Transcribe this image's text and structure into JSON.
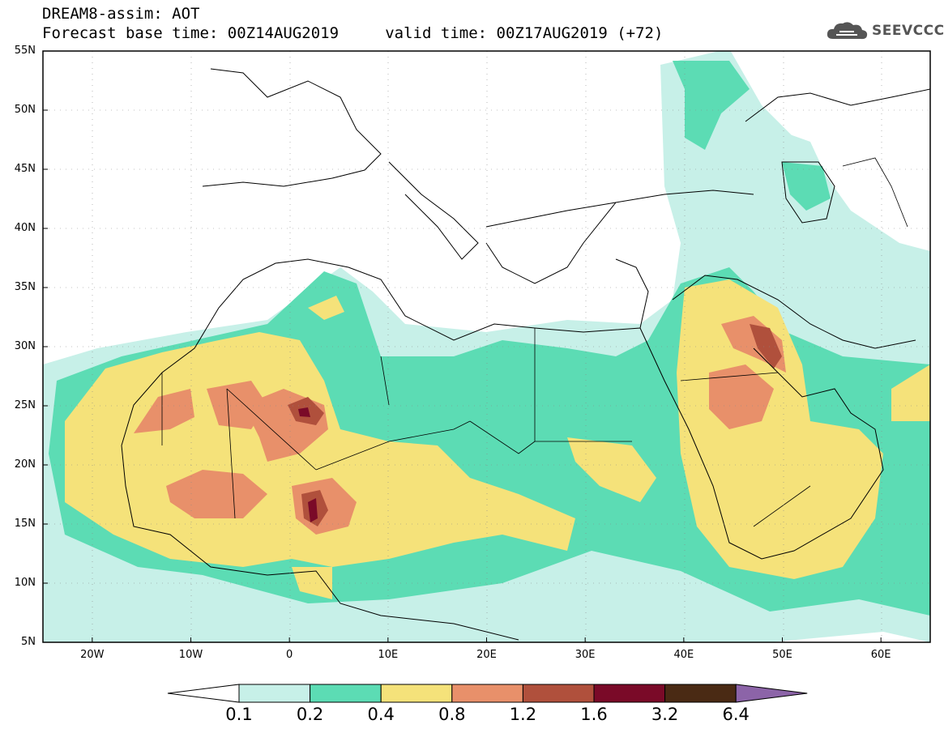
{
  "title": {
    "line1": "DREAM8-assim: AOT",
    "line2": "Forecast base time: 00Z14AUG2019     valid time: 00Z17AUG2019 (+72)"
  },
  "logo": {
    "text": "SEEVCCC",
    "icon": "cloud-icon"
  },
  "axes": {
    "lat_labels": [
      "55N",
      "50N",
      "45N",
      "40N",
      "35N",
      "30N",
      "25N",
      "20N",
      "15N",
      "10N",
      "5N"
    ],
    "lat_values": [
      55,
      50,
      45,
      40,
      35,
      30,
      25,
      20,
      15,
      10,
      5
    ],
    "lon_labels": [
      "20W",
      "10W",
      "0",
      "10E",
      "20E",
      "30E",
      "40E",
      "50E",
      "60E"
    ],
    "lon_values": [
      -20,
      -10,
      0,
      10,
      20,
      30,
      40,
      50,
      60
    ],
    "lat_range": [
      5,
      55
    ],
    "lon_range": [
      -25,
      65
    ]
  },
  "colorbar": {
    "labels": [
      "0.1",
      "0.2",
      "0.4",
      "0.8",
      "1.2",
      "1.6",
      "3.2",
      "6.4"
    ],
    "colors": [
      "#ffffff",
      "#c7f0e8",
      "#5cdcb4",
      "#f5e27a",
      "#e8906a",
      "#b0503c",
      "#7a0a28",
      "#4a2a14",
      "#8c64a8"
    ]
  }
}
